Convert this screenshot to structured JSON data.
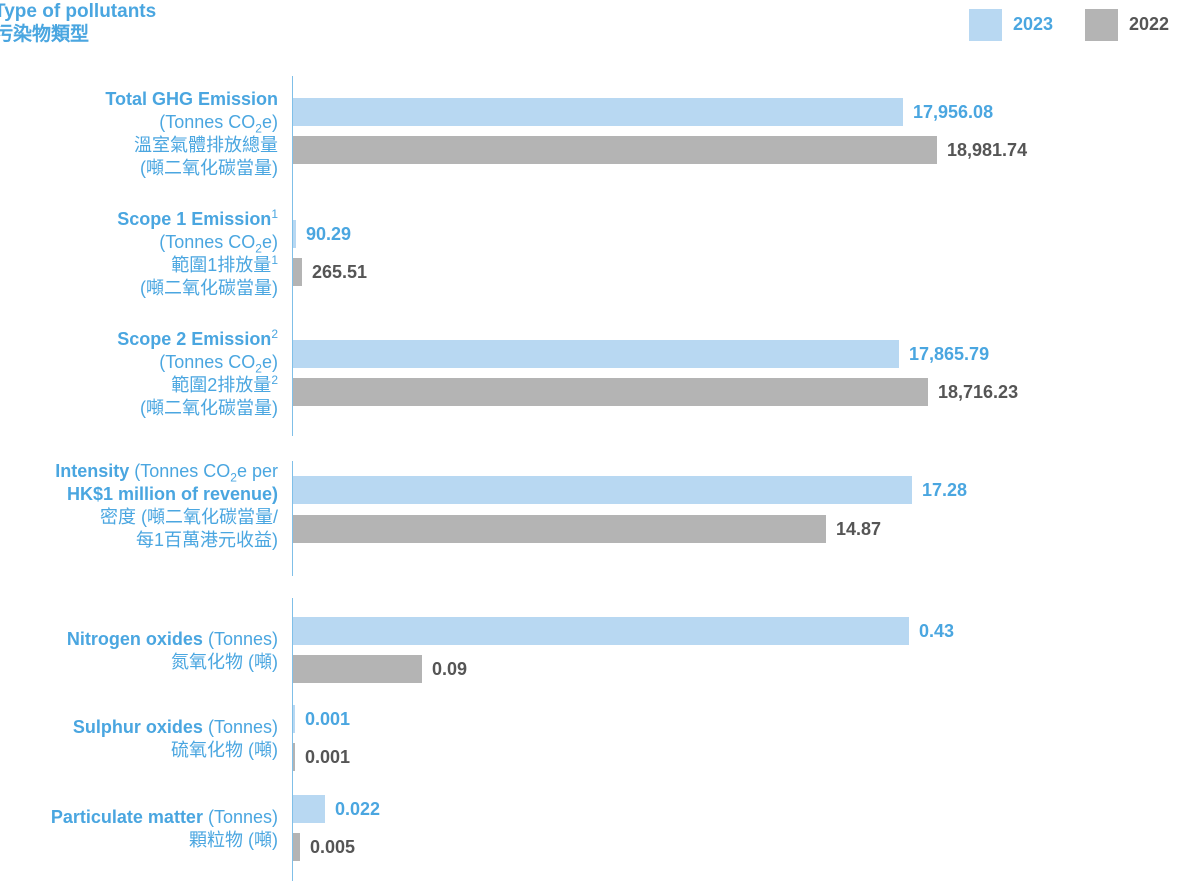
{
  "title": {
    "en": "Type of pollutants",
    "zh": "污染物類型"
  },
  "colors": {
    "s2023": "#b8d8f2",
    "s2022": "#b4b4b4",
    "label_blue": "#4aa6e0",
    "value_grey": "#555555"
  },
  "chart_data": [
    {
      "type": "bar",
      "orientation": "horizontal",
      "title": "",
      "xlabel": "",
      "ylabel": "",
      "xlim": [
        0,
        19000
      ],
      "legend": "top-right",
      "grid": false,
      "series": [
        {
          "name": "2023",
          "values": [
            17956.08,
            90.29,
            17865.79
          ]
        },
        {
          "name": "2022",
          "values": [
            18981.74,
            265.51,
            18716.23
          ]
        }
      ],
      "value_labels": [
        [
          "17,956.08",
          "90.29",
          "17,865.79"
        ],
        [
          "18,981.74",
          "265.51",
          "18,716.23"
        ]
      ],
      "categories": [
        {
          "en": "Total GHG Emission",
          "unit_pre": "(Tonnes CO",
          "unit_sub": "2",
          "unit_post": "e)",
          "zh": "溫室氣體排放總量",
          "zh_unit": "(噸二氧化碳當量)"
        },
        {
          "en": "Scope 1 Emission",
          "en_sup": "1",
          "unit_pre": "(Tonnes CO",
          "unit_sub": "2",
          "unit_post": "e)",
          "zh": "範圍1排放量",
          "zh_sup": "1",
          "zh_unit": "(噸二氧化碳當量)"
        },
        {
          "en": "Scope 2 Emission",
          "en_sup": "2",
          "unit_pre": "(Tonnes CO",
          "unit_sub": "2",
          "unit_post": "e)",
          "zh": "範圍2排放量",
          "zh_sup": "2",
          "zh_unit": "(噸二氧化碳當量)"
        }
      ]
    },
    {
      "type": "bar",
      "orientation": "horizontal",
      "title": "",
      "xlim": [
        0,
        18
      ],
      "grid": false,
      "series": [
        {
          "name": "2023",
          "values": [
            17.28
          ]
        },
        {
          "name": "2022",
          "values": [
            14.87
          ]
        }
      ],
      "value_labels": [
        [
          "17.28"
        ],
        [
          "14.87"
        ]
      ],
      "categories": [
        {
          "en": "Intensity",
          "unit_pre": " (Tonnes CO",
          "unit_sub": "2",
          "unit_post": "e per",
          "unit_line2": "HK$1 million of revenue)",
          "zh": "密度 (噸二氧化碳當量/",
          "zh_unit": "每1百萬港元收益)"
        }
      ]
    },
    {
      "type": "bar",
      "orientation": "horizontal",
      "title": "",
      "xlim": [
        0,
        0.45
      ],
      "grid": false,
      "series": [
        {
          "name": "2023",
          "values": [
            0.43,
            0.001,
            0.022
          ]
        },
        {
          "name": "2022",
          "values": [
            0.09,
            0.001,
            0.005
          ]
        }
      ],
      "value_labels": [
        [
          "0.43",
          "0.001",
          "0.022"
        ],
        [
          "0.09",
          "0.001",
          "0.005"
        ]
      ],
      "categories": [
        {
          "en": "Nitrogen oxides",
          "unit_pre": " (Tonnes)",
          "zh": "氮氧化物 (噸)"
        },
        {
          "en": "Sulphur oxides",
          "unit_pre": " (Tonnes)",
          "zh": "硫氧化物 (噸)"
        },
        {
          "en": "Particulate matter",
          "unit_pre": " (Tonnes)",
          "zh": "顆粒物 (噸)"
        }
      ]
    }
  ]
}
